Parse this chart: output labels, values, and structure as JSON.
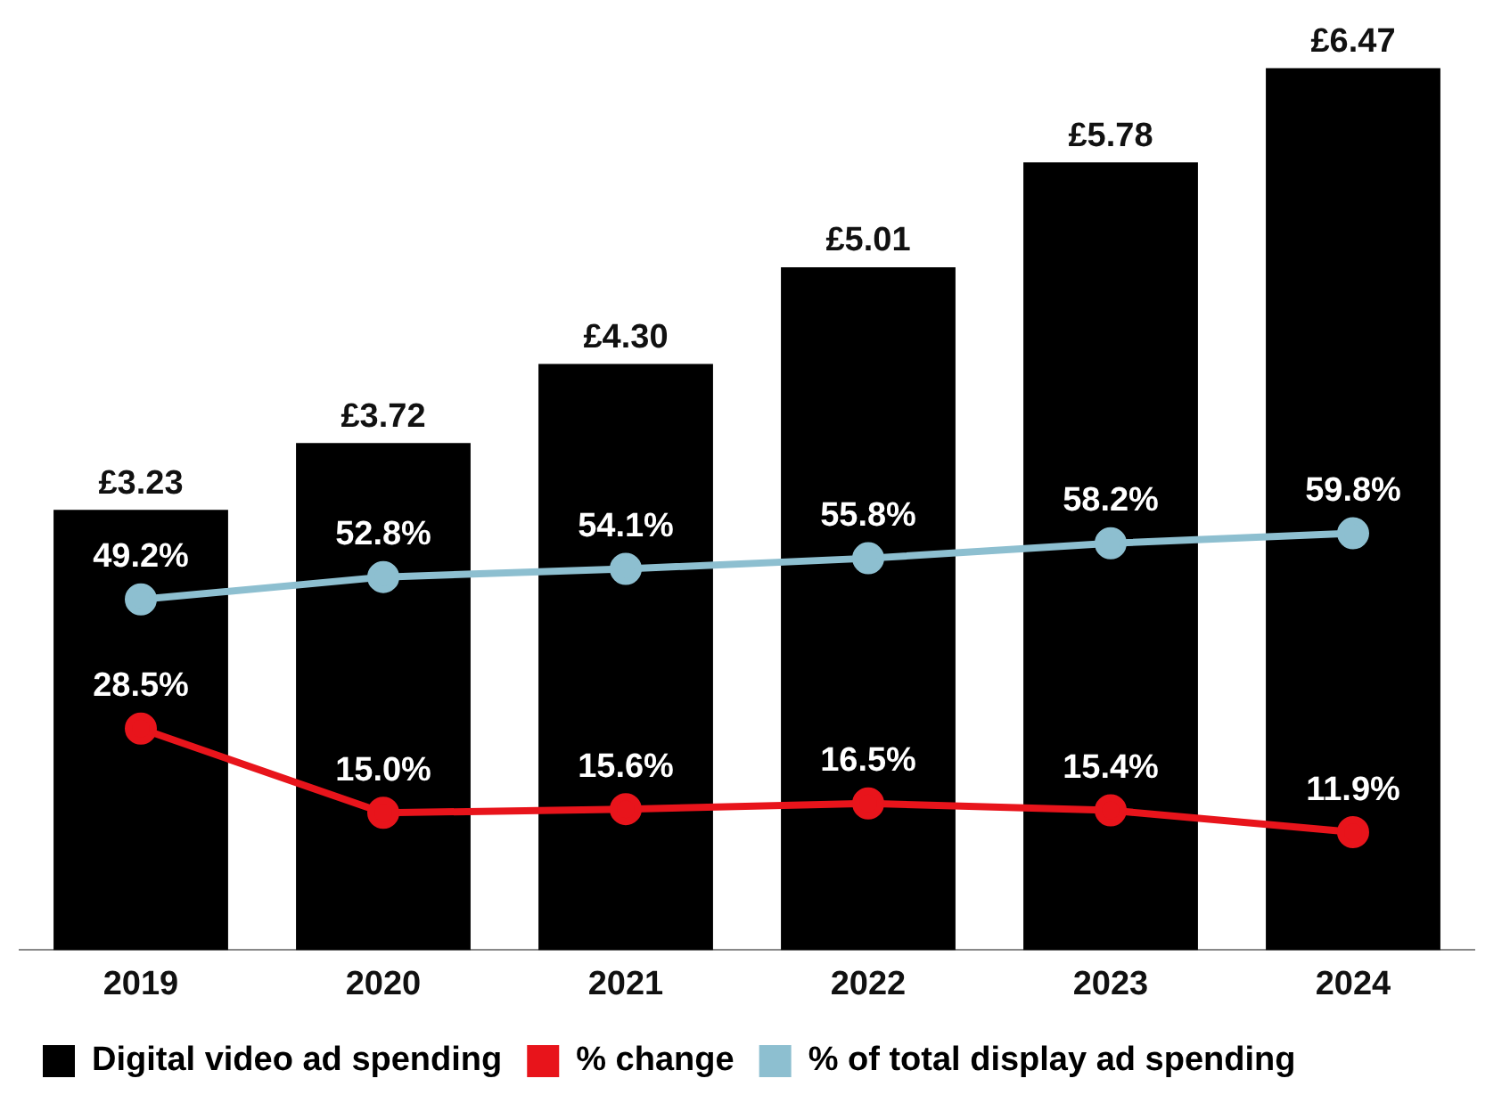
{
  "chart_data": {
    "type": "bar",
    "categories": [
      "2019",
      "2020",
      "2021",
      "2022",
      "2023",
      "2024"
    ],
    "series": [
      {
        "name": "Digital video ad spending",
        "color": "#000000",
        "values": [
          3.23,
          3.72,
          4.3,
          5.01,
          5.78,
          6.47
        ],
        "value_labels": [
          "£3.23",
          "£3.72",
          "£4.30",
          "£5.01",
          "£5.78",
          "£6.47"
        ]
      },
      {
        "name": "% change",
        "type": "line",
        "axis": "y2",
        "color": "#e8141b",
        "values": [
          28.5,
          15.0,
          15.6,
          16.5,
          15.4,
          11.9
        ],
        "value_labels": [
          "28.5%",
          "15.0%",
          "15.6%",
          "16.5%",
          "15.4%",
          "11.9%"
        ]
      },
      {
        "name": "% of total display ad spending",
        "type": "line",
        "axis": "y2",
        "color": "#8dbfd0",
        "values": [
          49.2,
          52.8,
          54.1,
          55.8,
          58.2,
          59.8
        ],
        "value_labels": [
          "49.2%",
          "52.8%",
          "54.1%",
          "55.8%",
          "58.2%",
          "59.8%"
        ]
      }
    ],
    "ylim": [
      0,
      6.5
    ],
    "y2lim": [
      -7,
      135
    ],
    "tick_labels": "x",
    "grid": false,
    "legend": "bottom",
    "marker": "circle",
    "line_style": "solid"
  }
}
